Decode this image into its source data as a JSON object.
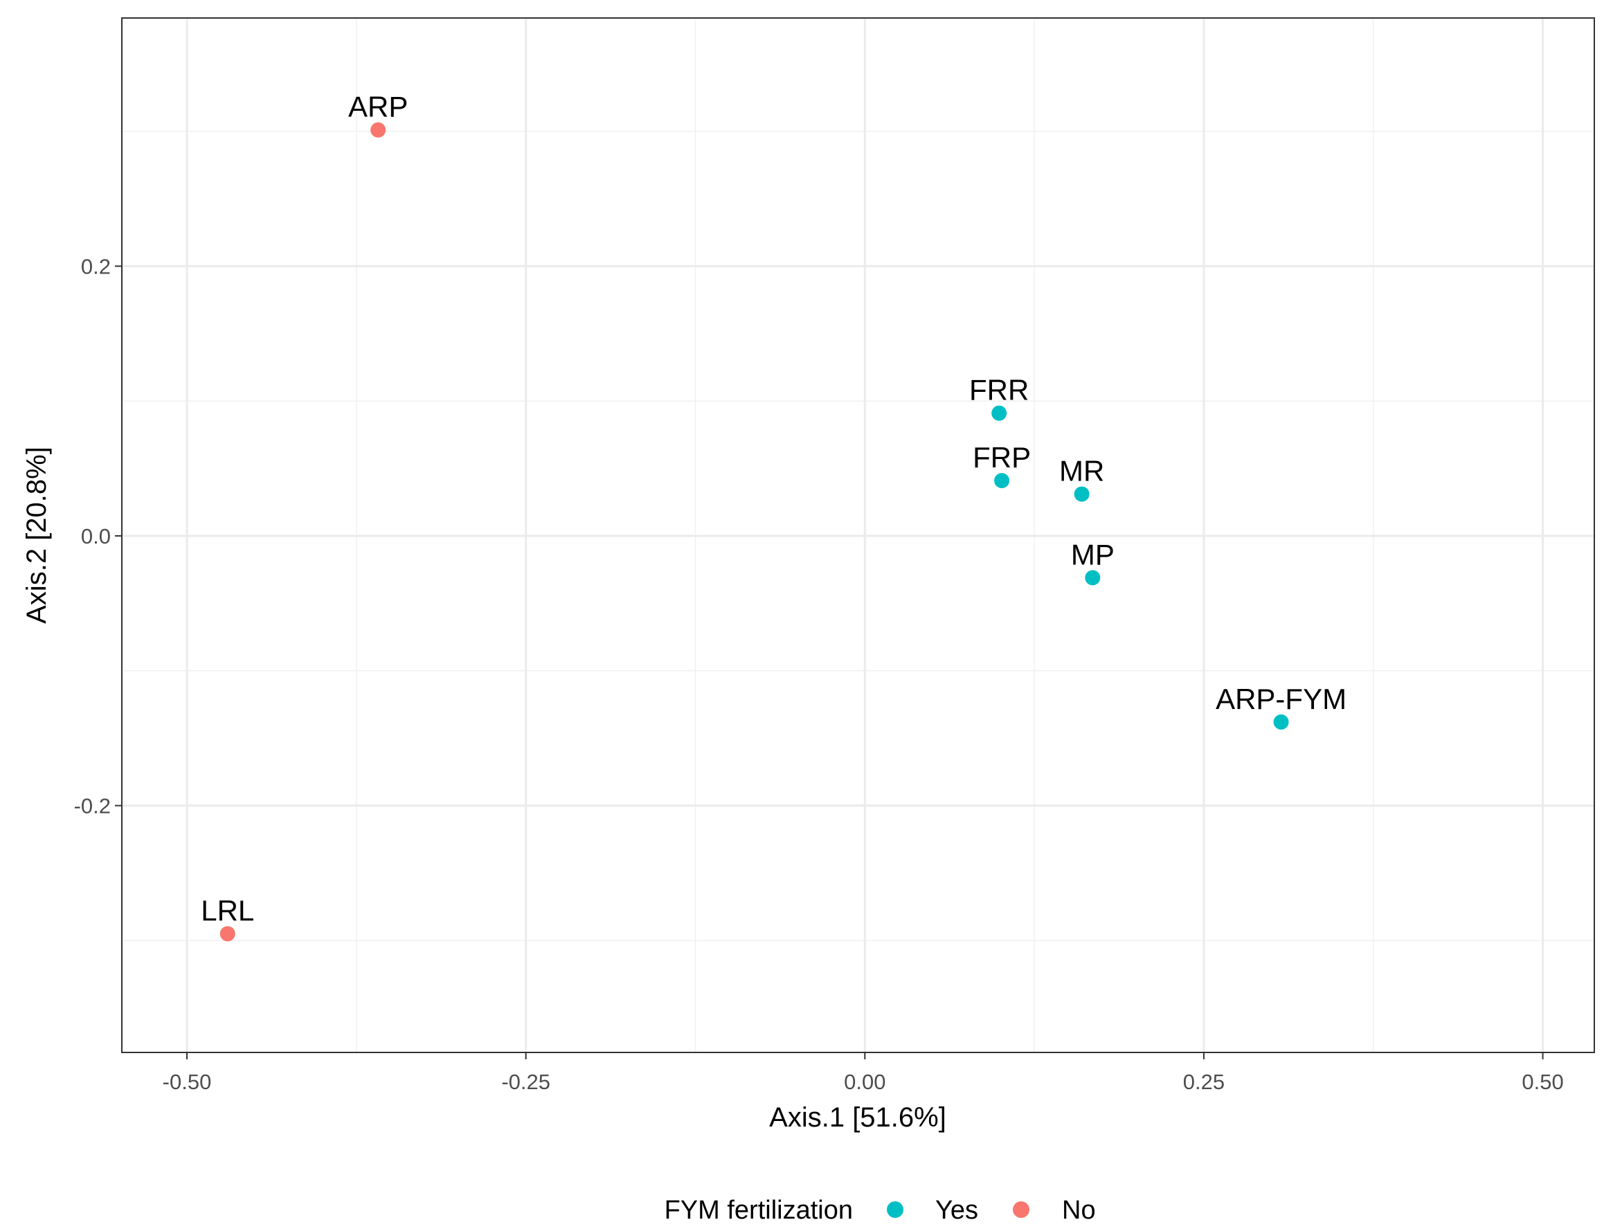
{
  "chart_data": {
    "type": "scatter",
    "title": "",
    "xlabel": "Axis.1 [51.6%]",
    "ylabel": "Axis.2 [20.8%]",
    "xlim": [
      -0.548,
      0.538
    ],
    "ylim": [
      -0.383,
      0.384
    ],
    "x_ticks": [
      -0.5,
      -0.25,
      0.0,
      0.25,
      0.5
    ],
    "x_tick_labels": [
      "-0.50",
      "-0.25",
      "0.00",
      "0.25",
      "0.50"
    ],
    "x_minor": [
      -0.375,
      -0.125,
      0.125,
      0.375
    ],
    "y_ticks": [
      -0.2,
      0.0,
      0.2
    ],
    "y_tick_labels": [
      "-0.2",
      "0.0",
      "0.2"
    ],
    "y_minor": [
      -0.3,
      -0.1,
      0.1,
      0.3
    ],
    "grid": true,
    "legend": {
      "title": "FYM fertilization",
      "placement": "bottom",
      "entries": [
        {
          "label": "Yes",
          "color": "#00BFC4"
        },
        {
          "label": "No",
          "color": "#F8766D"
        }
      ]
    },
    "points": [
      {
        "label": "ARP",
        "x": -0.359,
        "y": 0.301,
        "group": "No"
      },
      {
        "label": "LRL",
        "x": -0.47,
        "y": -0.295,
        "group": "No"
      },
      {
        "label": "FRR",
        "x": 0.099,
        "y": 0.091,
        "group": "Yes"
      },
      {
        "label": "FRP",
        "x": 0.101,
        "y": 0.041,
        "group": "Yes"
      },
      {
        "label": "MR",
        "x": 0.16,
        "y": 0.031,
        "group": "Yes"
      },
      {
        "label": "MP",
        "x": 0.168,
        "y": -0.031,
        "group": "Yes"
      },
      {
        "label": "ARP-FYM",
        "x": 0.307,
        "y": -0.138,
        "group": "Yes"
      }
    ]
  }
}
